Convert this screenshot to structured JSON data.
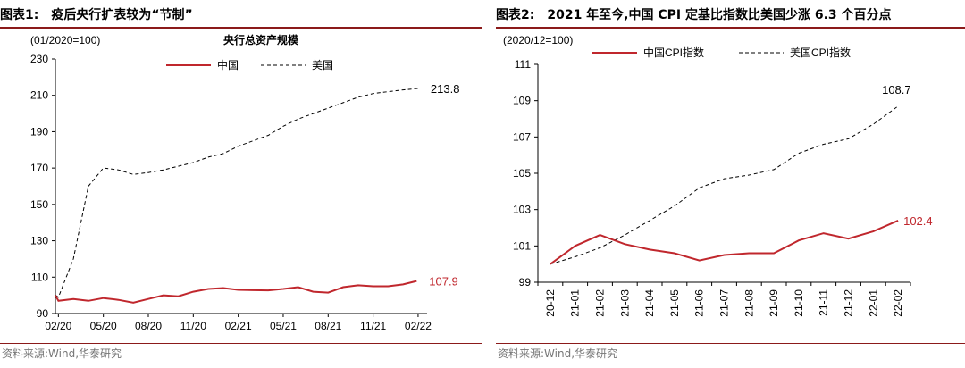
{
  "figures": [
    {
      "number": "图表1:",
      "title": "疫后央行扩表较为“节制”",
      "source": "资料来源:Wind,华泰研究",
      "chart_data": {
        "type": "line",
        "unit_label": "(01/2020=100)",
        "subtitle": "央行总资产规模",
        "xlabel": "",
        "ylabel": "",
        "ylim": [
          90,
          230
        ],
        "yticks": [
          "90",
          "110",
          "130",
          "150",
          "170",
          "190",
          "210",
          "230"
        ],
        "x_ticks": [
          {
            "pos": 0,
            "label": "02/20"
          },
          {
            "pos": 3,
            "label": "05/20"
          },
          {
            "pos": 6,
            "label": "08/20"
          },
          {
            "pos": 9,
            "label": "11/20"
          },
          {
            "pos": 12,
            "label": "02/21"
          },
          {
            "pos": 15,
            "label": "05/21"
          },
          {
            "pos": 18,
            "label": "08/21"
          },
          {
            "pos": 21,
            "label": "11/21"
          },
          {
            "pos": 24,
            "label": "02/22"
          }
        ],
        "x_range": [
          -0.2,
          24.6
        ],
        "grid": false,
        "legend_position": "top-center",
        "series": [
          {
            "name": "中国",
            "color": "#c0272d",
            "style": "solid",
            "x": [
              -0.2,
              0,
              1,
              2,
              3,
              4,
              5,
              6,
              7,
              8,
              9,
              10,
              11,
              12,
              13,
              14,
              15,
              16,
              17,
              18,
              19,
              20,
              21,
              22,
              23,
              23.9
            ],
            "values": [
              100,
              97,
              98,
              97,
              98.5,
              97.5,
              96,
              98,
              100,
              99.5,
              102,
              103.5,
              104,
              103,
              102.8,
              102.7,
              103.5,
              104.5,
              102,
              101.5,
              104.5,
              105.5,
              105,
              105,
              106,
              107.9
            ],
            "end_label": "107.9"
          },
          {
            "name": "美国",
            "color": "#000000",
            "style": "dashed",
            "x": [
              -0.2,
              0,
              1,
              2,
              3,
              4,
              5,
              6,
              7,
              8,
              9,
              10,
              11,
              12,
              13,
              14,
              15,
              16,
              17,
              18,
              19,
              20,
              21,
              22,
              23,
              24
            ],
            "values": [
              100,
              99,
              120,
              160,
              170,
              169,
              166.5,
              167.5,
              169,
              171,
              173,
              176,
              178,
              182,
              185,
              188,
              193,
              197,
              200,
              203,
              206,
              209,
              211,
              212,
              213,
              213.8
            ],
            "end_label": "213.8"
          }
        ]
      }
    },
    {
      "number": "图表2:",
      "title": "2021 年至今,中国 CPI 定基比指数比美国少涨 6.3 个百分点",
      "source": "资料来源:Wind,华泰研究",
      "chart_data": {
        "type": "line",
        "unit_label": "(2020/12=100)",
        "subtitle": "",
        "xlabel": "",
        "ylabel": "",
        "ylim": [
          99,
          111
        ],
        "yticks": [
          "99",
          "101",
          "103",
          "105",
          "107",
          "109",
          "111"
        ],
        "categories": [
          "20-12",
          "21-01",
          "21-02",
          "21-03",
          "21-04",
          "21-05",
          "21-06",
          "21-07",
          "21-08",
          "21-09",
          "21-10",
          "21-11",
          "21-12",
          "22-01",
          "22-02"
        ],
        "grid": false,
        "legend_position": "top-center",
        "series": [
          {
            "name": "中国CPI指数",
            "color": "#c0272d",
            "style": "solid",
            "values": [
              100,
              101,
              101.6,
              101.1,
              100.8,
              100.6,
              100.2,
              100.5,
              100.6,
              100.6,
              101.3,
              101.7,
              101.4,
              101.8,
              102.4
            ],
            "end_label": "102.4"
          },
          {
            "name": "美国CPI指数",
            "color": "#000000",
            "style": "dashed",
            "values": [
              100,
              100.4,
              100.9,
              101.6,
              102.4,
              103.2,
              104.2,
              104.7,
              104.9,
              105.2,
              106.1,
              106.6,
              106.9,
              107.7,
              108.7
            ],
            "end_label": "108.7"
          }
        ]
      }
    }
  ]
}
